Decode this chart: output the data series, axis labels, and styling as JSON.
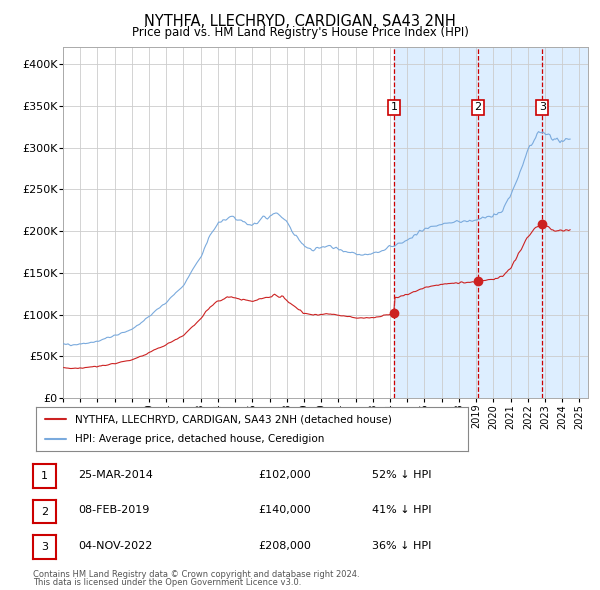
{
  "title": "NYTHFA, LLECHRYD, CARDIGAN, SA43 2NH",
  "subtitle": "Price paid vs. HM Land Registry's House Price Index (HPI)",
  "ylabel_ticks": [
    "£0",
    "£50K",
    "£100K",
    "£150K",
    "£200K",
    "£250K",
    "£300K",
    "£350K",
    "£400K"
  ],
  "ytick_values": [
    0,
    50000,
    100000,
    150000,
    200000,
    250000,
    300000,
    350000,
    400000
  ],
  "ylim": [
    0,
    420000
  ],
  "xlim_start": 1995.0,
  "xlim_end": 2025.5,
  "grid_color": "#cccccc",
  "hpi_color": "#7aaadd",
  "price_color": "#cc2222",
  "vline_color": "#cc0000",
  "shade_color": "#ddeeff",
  "legend_label_price": "NYTHFA, LLECHRYD, CARDIGAN, SA43 2NH (detached house)",
  "legend_label_hpi": "HPI: Average price, detached house, Ceredigion",
  "sale_events": [
    {
      "id": 1,
      "date_str": "25-MAR-2014",
      "year": 2014.23,
      "price": 102000,
      "pct": "52%"
    },
    {
      "id": 2,
      "date_str": "08-FEB-2019",
      "year": 2019.11,
      "price": 140000,
      "pct": "41%"
    },
    {
      "id": 3,
      "date_str": "04-NOV-2022",
      "year": 2022.84,
      "price": 208000,
      "pct": "36%"
    }
  ],
  "footer_line1": "Contains HM Land Registry data © Crown copyright and database right 2024.",
  "footer_line2": "This data is licensed under the Open Government Licence v3.0."
}
